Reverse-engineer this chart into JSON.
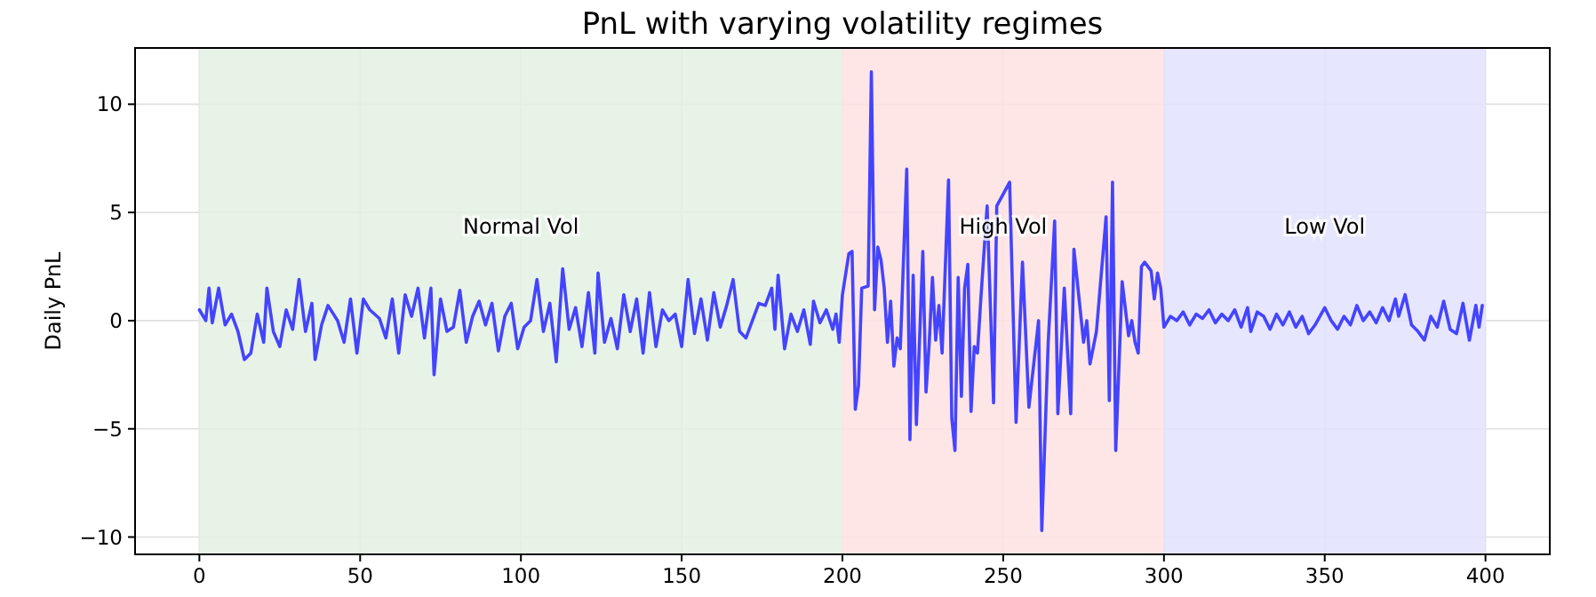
{
  "chart_data": {
    "type": "line",
    "title": "PnL with varying volatility regimes",
    "ylabel": "Daily PnL",
    "xlim": [
      -20,
      420
    ],
    "xticks": [
      0,
      50,
      100,
      150,
      200,
      250,
      300,
      350,
      400
    ],
    "ylim": [
      -10.8,
      12.6
    ],
    "yticks": [
      -10,
      -5,
      0,
      5,
      10
    ],
    "grid": true,
    "marker": "none",
    "line_style": "solid",
    "bands": [
      {
        "axis": "x",
        "from": 0,
        "to": 200,
        "label": "Normal Vol",
        "color": "#e4f1e4"
      },
      {
        "axis": "x",
        "from": 200,
        "to": 300,
        "label": "High Vol",
        "color": "#ffe2e2"
      },
      {
        "axis": "x",
        "from": 300,
        "to": 400,
        "label": "Low Vol",
        "color": "#e2e2ff"
      }
    ],
    "series": [
      {
        "color": "#4444ff",
        "x": [
          0,
          2,
          3,
          4,
          6,
          8,
          10,
          12,
          14,
          16,
          18,
          20,
          21,
          23,
          25,
          27,
          29,
          31,
          33,
          35,
          36,
          38,
          40,
          43,
          45,
          47,
          49,
          51,
          53,
          56,
          58,
          60,
          62,
          64,
          66,
          68,
          70,
          72,
          73,
          75,
          77,
          79,
          81,
          83,
          85,
          87,
          89,
          91,
          93,
          95,
          97,
          99,
          101,
          103,
          105,
          107,
          109,
          111,
          113,
          115,
          117,
          119,
          121,
          123,
          124,
          126,
          128,
          130,
          132,
          134,
          136,
          138,
          140,
          142,
          144,
          146,
          148,
          150,
          152,
          154,
          156,
          158,
          160,
          162,
          164,
          166,
          168,
          170,
          172,
          174,
          176,
          178,
          179,
          180,
          182,
          184,
          186,
          188,
          190,
          191,
          193,
          195,
          197,
          198,
          199,
          200,
          202,
          203,
          204,
          205,
          206,
          208,
          209,
          210,
          211,
          212,
          213,
          214,
          215,
          216,
          217,
          218,
          220,
          221,
          222,
          223,
          225,
          226,
          227,
          228,
          229,
          230,
          231,
          233,
          234,
          235,
          236,
          237,
          238,
          239,
          240,
          241,
          242,
          243,
          245,
          247,
          248,
          252,
          254,
          256,
          258,
          261,
          262,
          264,
          266,
          267,
          269,
          271,
          272,
          275,
          276,
          277,
          279,
          282,
          283,
          284,
          285,
          287,
          289,
          290,
          291,
          292,
          293,
          294,
          296,
          297,
          298,
          299,
          300,
          302,
          304,
          306,
          308,
          310,
          312,
          314,
          316,
          318,
          320,
          322,
          324,
          326,
          327,
          329,
          331,
          333,
          335,
          337,
          339,
          341,
          343,
          345,
          347,
          350,
          352,
          354,
          356,
          358,
          360,
          362,
          364,
          366,
          368,
          370,
          372,
          373,
          375,
          377,
          379,
          381,
          383,
          385,
          387,
          389,
          391,
          393,
          395,
          397,
          398,
          399
        ],
        "values": [
          0.5,
          0,
          1.5,
          -0.1,
          1.5,
          -0.2,
          0.3,
          -0.5,
          -1.8,
          -1.5,
          0.3,
          -1.0,
          1.5,
          -0.5,
          -1.2,
          0.5,
          -0.4,
          1.9,
          -0.5,
          0.8,
          -1.8,
          -0.2,
          0.7,
          0,
          -1,
          1.0,
          -1.5,
          1.0,
          0.5,
          0.1,
          -0.8,
          1.0,
          -1.5,
          1.2,
          0.2,
          1.5,
          -0.8,
          1.5,
          -2.5,
          1.0,
          -0.5,
          -0.3,
          1.4,
          -1,
          0.2,
          0.9,
          -0.2,
          0.8,
          -1.4,
          0.2,
          0.8,
          -1.3,
          -0.3,
          0,
          1.9,
          -0.5,
          0.8,
          -1.9,
          2.4,
          -0.4,
          0.6,
          -1.2,
          1.3,
          -1.5,
          2.2,
          -1.0,
          0.1,
          -1.3,
          1.2,
          -0.5,
          1.0,
          -1.5,
          1.3,
          -1.2,
          0.5,
          0,
          0.3,
          -1.2,
          1.9,
          -0.6,
          1.0,
          -0.9,
          1.3,
          -0.3,
          0.7,
          1.9,
          -0.5,
          -0.8,
          0,
          0.8,
          0.7,
          1.5,
          -0.4,
          2.1,
          -1.3,
          0.3,
          -0.5,
          0.5,
          -1.1,
          0.9,
          -0.1,
          0.5,
          -0.4,
          0.3,
          -1.0,
          1.2,
          3.1,
          3.2,
          -4.1,
          -3.0,
          1.5,
          1.6,
          11.5,
          0.5,
          3.4,
          2.8,
          1.5,
          -1.0,
          0.9,
          -2.1,
          -0.8,
          -1.3,
          7,
          -5.5,
          2.1,
          -4.8,
          3.2,
          -3.3,
          -1.0,
          2.0,
          -0.9,
          0.7,
          -1.5,
          6.5,
          -4.5,
          -6.0,
          2.0,
          -3.5,
          1.5,
          2.6,
          -4.2,
          -1.2,
          -1.5,
          0.9,
          5.3,
          -3.8,
          5.3,
          6.4,
          -4.7,
          2.7,
          -4.0,
          0,
          -9.7,
          -1,
          4.6,
          -4.3,
          1.5,
          -4.3,
          3.3,
          -1.0,
          0,
          -2,
          -0.5,
          4.8,
          -3.7,
          6.4,
          -6,
          1.8,
          -0.7,
          0,
          -1.0,
          -1.5,
          2.5,
          2.7,
          2.3,
          1.0,
          2.2,
          1.5,
          -0.3,
          0.2,
          0,
          0.4,
          -0.2,
          0.3,
          0.1,
          0.5,
          -0.1,
          0.3,
          0,
          0.5,
          -0.3,
          0.6,
          -0.5,
          0.4,
          0.2,
          -0.4,
          0.3,
          -0.2,
          0.4,
          -0.3,
          0.2,
          -0.6,
          -0.2,
          0.6,
          0,
          -0.4,
          0.2,
          -0.2,
          0.7,
          0,
          0.4,
          -0.1,
          0.6,
          0,
          1.0,
          0.2,
          1.2,
          -0.2,
          -0.5,
          -0.9,
          0.2,
          -0.3,
          0.9,
          -0.4,
          -0.6,
          0.8,
          -0.9,
          0.7,
          -0.3,
          0.7
        ]
      }
    ]
  }
}
